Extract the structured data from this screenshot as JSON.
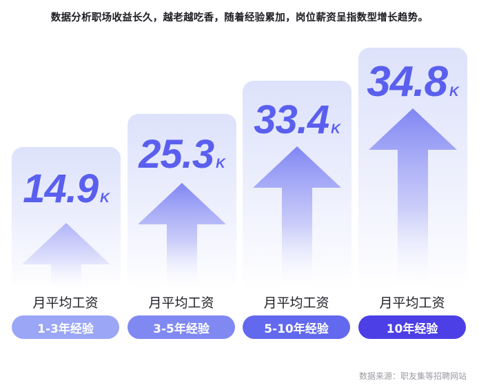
{
  "headline": "数据分析职场收益长久，越老越吃香，随着经验累加，岗位薪资呈指数型增长趋势。",
  "source": "数据来源：职友集等招聘网站",
  "unit": "K",
  "caption_label": "月平均工资",
  "colors": {
    "value_text": "#5a5fee",
    "card_top": "#dde2fb",
    "pills": [
      "#9ba6f6",
      "#8089f2",
      "#6269ee",
      "#4c3fe6"
    ]
  },
  "chart_data": {
    "type": "bar",
    "categories": [
      "1-3年经验",
      "3-5年经验",
      "5-10年经验",
      "10年经验"
    ],
    "values": [
      14.9,
      25.3,
      33.4,
      34.8
    ],
    "value_labels": [
      "14.9",
      "25.3",
      "33.4",
      "34.8"
    ],
    "unit": "K",
    "title": "",
    "xlabel": "",
    "ylabel": "月平均工资"
  }
}
